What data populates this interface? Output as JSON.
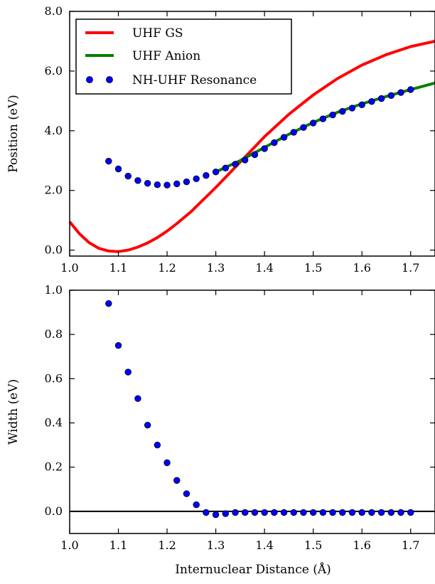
{
  "chart_data": [
    {
      "type": "line",
      "ylabel": "Position (eV)",
      "xlim": [
        1.0,
        1.75
      ],
      "ylim": [
        -0.2,
        8.0
      ],
      "xticks": [
        "1.0",
        "1.1",
        "1.2",
        "1.3",
        "1.4",
        "1.5",
        "1.6",
        "1.7"
      ],
      "yticks": [
        "0.0",
        "2.0",
        "4.0",
        "6.0",
        "8.0"
      ],
      "legend_position": "top-left",
      "series": [
        {
          "name": "UHF GS",
          "style": "line",
          "color": "#ff0000",
          "x": [
            1.0,
            1.02,
            1.04,
            1.06,
            1.08,
            1.1,
            1.12,
            1.14,
            1.16,
            1.18,
            1.2,
            1.22,
            1.25,
            1.3,
            1.35,
            1.4,
            1.45,
            1.5,
            1.55,
            1.6,
            1.65,
            1.7,
            1.75
          ],
          "y": [
            0.95,
            0.55,
            0.25,
            0.06,
            -0.03,
            -0.05,
            0.0,
            0.1,
            0.24,
            0.42,
            0.64,
            0.89,
            1.3,
            2.1,
            2.95,
            3.8,
            4.55,
            5.2,
            5.75,
            6.2,
            6.55,
            6.82,
            7.0
          ]
        },
        {
          "name": "UHF Anion",
          "style": "line",
          "color": "#008000",
          "x": [
            1.3,
            1.35,
            1.4,
            1.45,
            1.5,
            1.55,
            1.6,
            1.65,
            1.7,
            1.75
          ],
          "y": [
            2.62,
            3.0,
            3.44,
            3.88,
            4.28,
            4.62,
            4.9,
            5.15,
            5.38,
            5.6
          ]
        },
        {
          "name": "NH-UHF Resonance",
          "style": "points",
          "color": "#0000ff",
          "x": [
            1.08,
            1.1,
            1.12,
            1.14,
            1.16,
            1.18,
            1.2,
            1.22,
            1.24,
            1.26,
            1.28,
            1.3,
            1.32,
            1.34,
            1.36,
            1.38,
            1.4,
            1.42,
            1.44,
            1.46,
            1.48,
            1.5,
            1.52,
            1.54,
            1.56,
            1.58,
            1.6,
            1.62,
            1.64,
            1.66,
            1.68,
            1.7
          ],
          "y": [
            2.98,
            2.72,
            2.48,
            2.33,
            2.24,
            2.19,
            2.18,
            2.22,
            2.29,
            2.39,
            2.5,
            2.62,
            2.75,
            2.88,
            3.02,
            3.2,
            3.4,
            3.6,
            3.78,
            3.95,
            4.11,
            4.26,
            4.4,
            4.53,
            4.65,
            4.76,
            4.87,
            4.98,
            5.08,
            5.18,
            5.28,
            5.38
          ]
        }
      ]
    },
    {
      "type": "scatter",
      "xlabel": "Internuclear Distance (Å)",
      "ylabel": "Width (eV)",
      "xlim": [
        1.0,
        1.75
      ],
      "ylim": [
        -0.1,
        1.0
      ],
      "xticks": [
        "1.0",
        "1.1",
        "1.2",
        "1.3",
        "1.4",
        "1.5",
        "1.6",
        "1.7"
      ],
      "yticks": [
        "0.0",
        "0.2",
        "0.4",
        "0.6",
        "0.8",
        "1.0"
      ],
      "zero_line": 0.0,
      "series": [
        {
          "style": "points",
          "color": "#0000ff",
          "x": [
            1.08,
            1.1,
            1.12,
            1.14,
            1.16,
            1.18,
            1.2,
            1.22,
            1.24,
            1.26,
            1.28,
            1.3,
            1.32,
            1.34,
            1.36,
            1.38,
            1.4,
            1.42,
            1.44,
            1.46,
            1.48,
            1.5,
            1.52,
            1.54,
            1.56,
            1.58,
            1.6,
            1.62,
            1.64,
            1.66,
            1.68,
            1.7
          ],
          "y": [
            0.94,
            0.75,
            0.63,
            0.51,
            0.39,
            0.3,
            0.22,
            0.14,
            0.08,
            0.03,
            -0.005,
            -0.015,
            -0.01,
            -0.005,
            -0.005,
            -0.005,
            -0.005,
            -0.005,
            -0.005,
            -0.005,
            -0.005,
            -0.005,
            -0.005,
            -0.005,
            -0.005,
            -0.005,
            -0.005,
            -0.005,
            -0.005,
            -0.005,
            -0.005,
            -0.005
          ]
        }
      ]
    }
  ]
}
